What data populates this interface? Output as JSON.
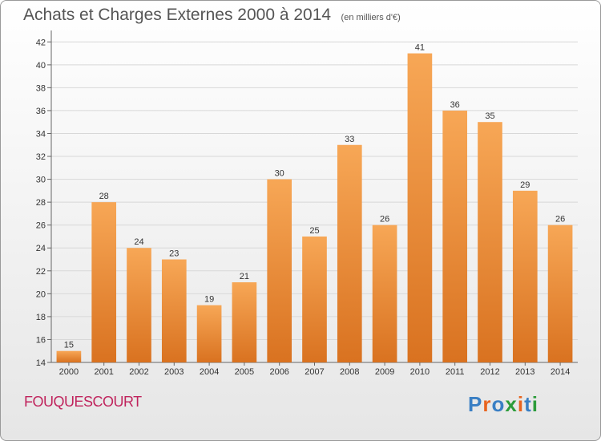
{
  "header": {
    "title": "Achats et Charges Externes 2000 à 2014",
    "unit": "(en milliers d'€)"
  },
  "footer": {
    "place": "FOUQUESCOURT",
    "logo_text": "Proxiti"
  },
  "colors": {
    "bar_top": "#f7a756",
    "bar_bottom": "#d97220",
    "title": "#555555",
    "place": "#c0245d",
    "logo": [
      "#3a7fc4",
      "#e8641f",
      "#3a7fc4",
      "#2c9c3a",
      "#e8641f",
      "#3a7fc4",
      "#2c9c3a"
    ]
  },
  "chart_data": {
    "type": "bar",
    "title": "Achats et Charges Externes 2000 à 2014",
    "subtitle": "(en milliers d'€)",
    "categories": [
      "2000",
      "2001",
      "2002",
      "2003",
      "2004",
      "2005",
      "2006",
      "2007",
      "2008",
      "2009",
      "2010",
      "2011",
      "2012",
      "2013",
      "2014"
    ],
    "values": [
      15,
      28,
      24,
      23,
      19,
      21,
      30,
      25,
      33,
      26,
      41,
      36,
      35,
      29,
      26
    ],
    "yticks": [
      14,
      16,
      18,
      20,
      22,
      24,
      26,
      28,
      30,
      32,
      34,
      36,
      38,
      40,
      42
    ],
    "ylim": [
      14,
      43
    ],
    "grid": true,
    "xlabel": "",
    "ylabel": ""
  }
}
